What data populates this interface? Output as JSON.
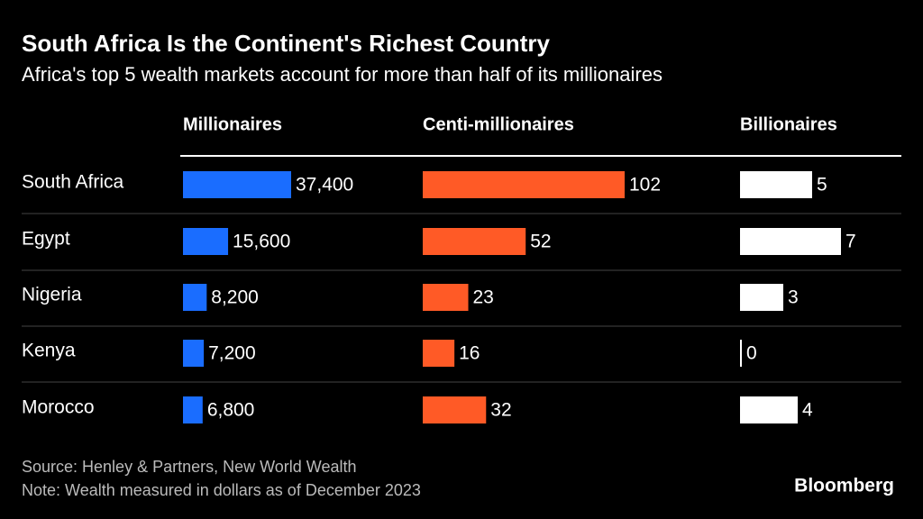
{
  "chart_data": {
    "type": "bar",
    "title": "South Africa Is the Continent's Richest Country",
    "subtitle": "Africa's top 5 wealth markets account for more than half of its millionaires",
    "categories": [
      "South Africa",
      "Egypt",
      "Nigeria",
      "Kenya",
      "Morocco"
    ],
    "series": [
      {
        "name": "Millionaires",
        "color": "#1a6dff",
        "values": [
          37400,
          15600,
          8200,
          7200,
          6800
        ],
        "value_labels": [
          "37,400",
          "15,600",
          "8,200",
          "7,200",
          "6,800"
        ]
      },
      {
        "name": "Centi-millionaires",
        "color": "#ff5a26",
        "values": [
          102,
          52,
          23,
          16,
          32
        ]
      },
      {
        "name": "Billionaires",
        "color": "#ffffff",
        "values": [
          5,
          7,
          3,
          0,
          4
        ]
      }
    ],
    "source": "Source: Henley & Partners, New World Wealth",
    "note": "Note: Wealth measured in dollars as of December 2023",
    "brand": "Bloomberg"
  }
}
